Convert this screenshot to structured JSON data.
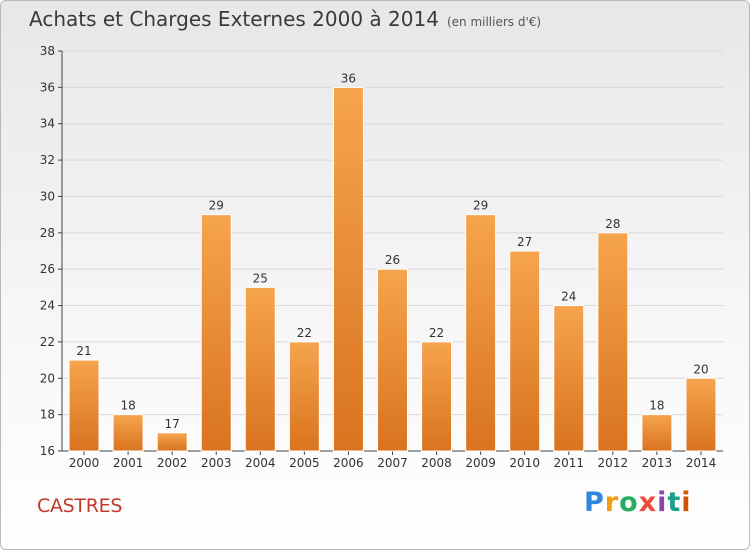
{
  "header": {
    "title": "Achats et Charges Externes 2000 à 2014",
    "subtitle": "(en milliers d'€)"
  },
  "footer": {
    "town": "CASTRES",
    "brand": "Proxiti"
  },
  "colors": {
    "bar_light": "#f6a44e",
    "bar_dark": "#d9731f",
    "grid": "#d8d8d8",
    "town": "#c0392b"
  },
  "chart_data": {
    "type": "bar",
    "title": "Achats et Charges Externes 2000 à 2014",
    "subtitle": "(en milliers d'€)",
    "xlabel": "",
    "ylabel": "",
    "categories": [
      "2000",
      "2001",
      "2002",
      "2003",
      "2004",
      "2005",
      "2006",
      "2007",
      "2008",
      "2009",
      "2010",
      "2011",
      "2012",
      "2013",
      "2014"
    ],
    "values": [
      21,
      18,
      17,
      29,
      25,
      22,
      36,
      26,
      22,
      29,
      27,
      24,
      28,
      18,
      20
    ],
    "ylim": [
      16,
      38
    ],
    "yticks": [
      16,
      18,
      20,
      22,
      24,
      26,
      28,
      30,
      32,
      34,
      36,
      38
    ],
    "grid": true,
    "data_labels": true
  }
}
